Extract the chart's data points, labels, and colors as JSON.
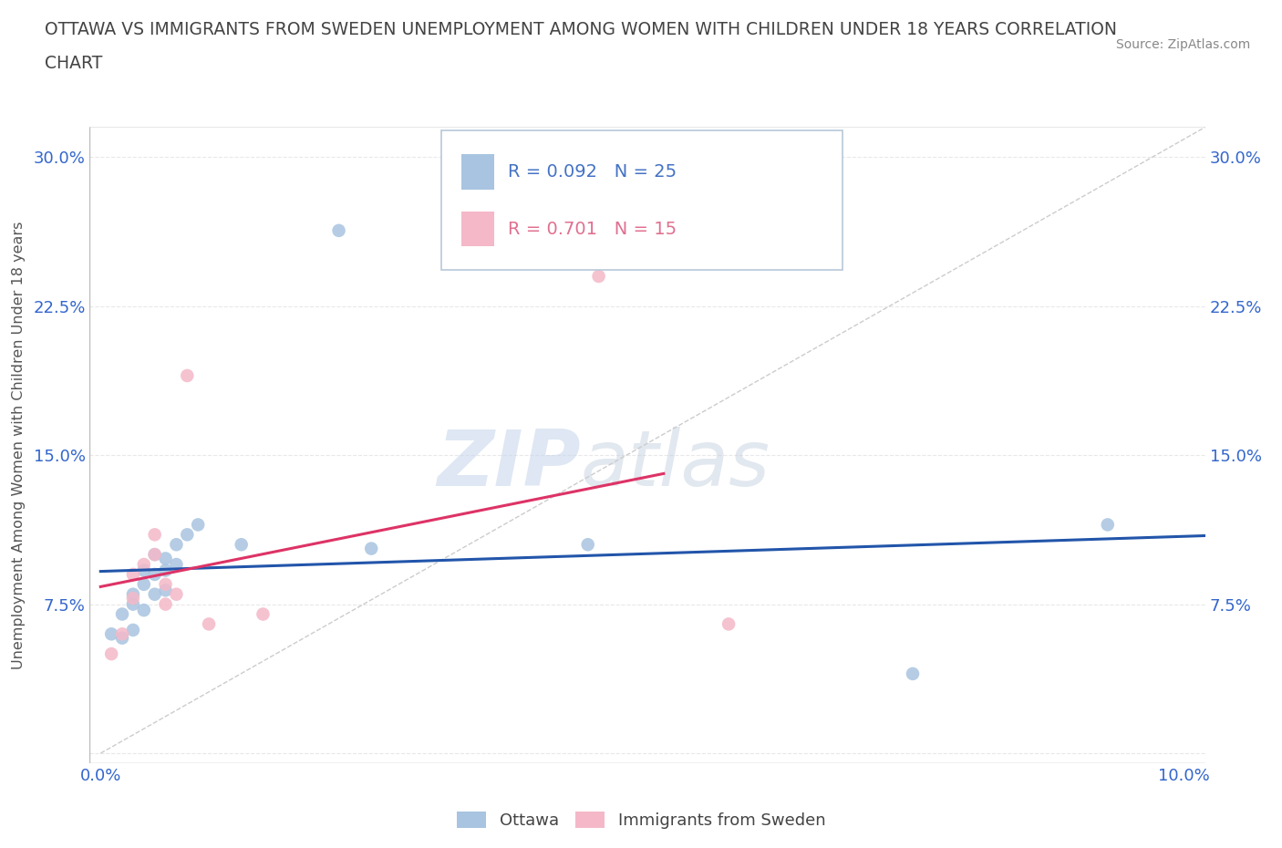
{
  "title_line1": "OTTAWA VS IMMIGRANTS FROM SWEDEN UNEMPLOYMENT AMONG WOMEN WITH CHILDREN UNDER 18 YEARS CORRELATION",
  "title_line2": "CHART",
  "source": "Source: ZipAtlas.com",
  "ylabel": "Unemployment Among Women with Children Under 18 years",
  "xlim": [
    -0.001,
    0.102
  ],
  "ylim": [
    -0.005,
    0.315
  ],
  "xticks": [
    0.0,
    0.01,
    0.02,
    0.03,
    0.04,
    0.05,
    0.06,
    0.07,
    0.08,
    0.09,
    0.1
  ],
  "xticklabels": [
    "0.0%",
    "",
    "",
    "",
    "",
    "",
    "",
    "",
    "",
    "",
    "10.0%"
  ],
  "yticks": [
    0.0,
    0.075,
    0.15,
    0.225,
    0.3
  ],
  "yticklabels": [
    "",
    "7.5%",
    "15.0%",
    "22.5%",
    "30.0%"
  ],
  "ottawa_color": "#a8c4e0",
  "sweden_color": "#f4b8c8",
  "trendline_ottawa_color": "#2255aa",
  "trendline_sweden_color": "#dd3366",
  "trendline_ref_color": "#cccccc",
  "r_ottawa": 0.092,
  "n_ottawa": 25,
  "r_sweden": 0.701,
  "n_sweden": 15,
  "legend_r_color": "#4472c4",
  "legend_r_pink": "#e07090",
  "watermark_zip": "ZIP",
  "watermark_atlas": "atlas",
  "ottawa_x": [
    0.001,
    0.002,
    0.002,
    0.003,
    0.003,
    0.003,
    0.004,
    0.004,
    0.004,
    0.005,
    0.005,
    0.005,
    0.006,
    0.006,
    0.006,
    0.007,
    0.007,
    0.008,
    0.009,
    0.013,
    0.022,
    0.025,
    0.045,
    0.075,
    0.093
  ],
  "ottawa_y": [
    0.06,
    0.058,
    0.07,
    0.062,
    0.075,
    0.08,
    0.072,
    0.085,
    0.092,
    0.08,
    0.09,
    0.1,
    0.082,
    0.092,
    0.098,
    0.095,
    0.105,
    0.11,
    0.115,
    0.105,
    0.263,
    0.103,
    0.105,
    0.04,
    0.115
  ],
  "sweden_x": [
    0.001,
    0.002,
    0.003,
    0.003,
    0.004,
    0.005,
    0.005,
    0.006,
    0.006,
    0.007,
    0.008,
    0.01,
    0.015,
    0.046,
    0.058
  ],
  "sweden_y": [
    0.05,
    0.06,
    0.078,
    0.09,
    0.095,
    0.1,
    0.11,
    0.075,
    0.085,
    0.08,
    0.19,
    0.065,
    0.07,
    0.24,
    0.065
  ],
  "background_color": "#ffffff",
  "grid_color": "#e8e8e8"
}
